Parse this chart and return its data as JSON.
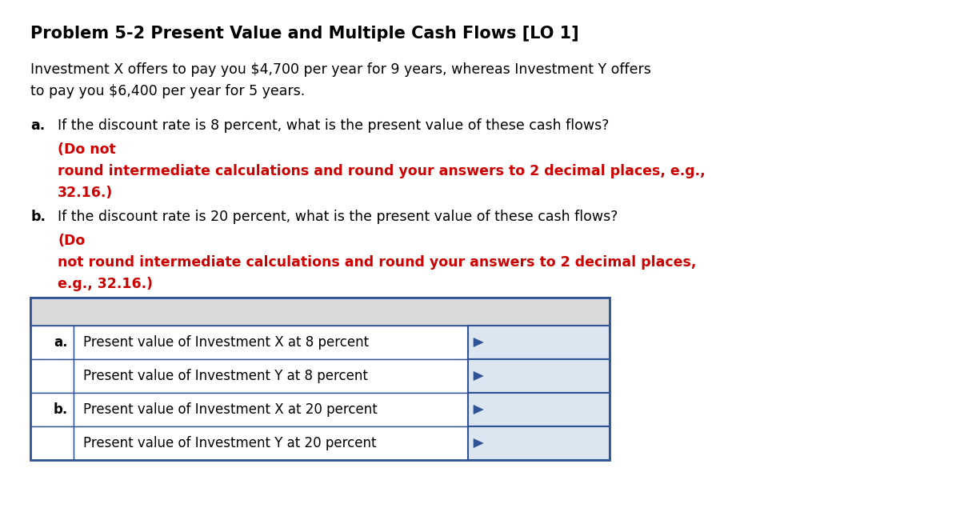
{
  "title": "Problem 5-2 Present Value and Multiple Cash Flows [LO 1]",
  "title_fontsize": 15,
  "body_fontsize": 12.5,
  "table_fontsize": 12,
  "bg_color": "#ffffff",
  "text_color": "#000000",
  "red_color": "#cc0000",
  "paragraph1_line1": "Investment X offers to pay you $4,700 per year for 9 years, whereas Investment Y offers",
  "paragraph1_line2": "to pay you $6,400 per year for 5 years.",
  "qa_normal": "If the discount rate is 8 percent, what is the present value of these cash flows? ",
  "qa_red1": "(Do not",
  "qa_red2": "round intermediate calculations and round your answers to 2 decimal places, e.g.,",
  "qa_red3": "32.16.)",
  "qb_normal": "If the discount rate is 20 percent, what is the present value of these cash flows? ",
  "qb_red1": "(Do",
  "qb_red2": "not round intermediate calculations and round your answers to 2 decimal places,",
  "qb_red3": "e.g., 32.16.)",
  "table_rows": [
    {
      "label": "a.",
      "description": "Present value of Investment X at 8 percent"
    },
    {
      "label": "",
      "description": "Present value of Investment Y at 8 percent"
    },
    {
      "label": "b.",
      "description": "Present value of Investment X at 20 percent"
    },
    {
      "label": "",
      "description": "Present value of Investment Y at 20 percent"
    }
  ],
  "table_header_bg": "#d9d9d9",
  "table_cell_bg": "#ffffff",
  "table_input_bg": "#dce6f1",
  "table_border_color": "#2f5496"
}
